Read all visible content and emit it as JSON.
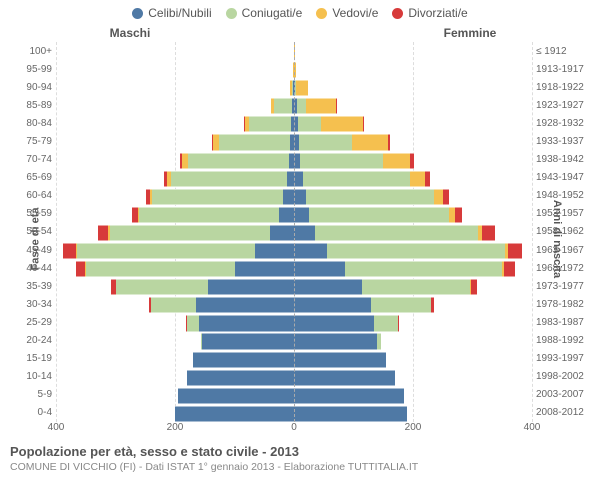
{
  "legend": [
    {
      "label": "Celibi/Nubili",
      "color": "#4f79a5"
    },
    {
      "label": "Coniugati/e",
      "color": "#b9d6a1"
    },
    {
      "label": "Vedovi/e",
      "color": "#f5c04f"
    },
    {
      "label": "Divorziati/e",
      "color": "#d73a3a"
    }
  ],
  "headers": {
    "left": "Maschi",
    "right": "Femmine"
  },
  "axis_titles": {
    "left": "Fasce di età",
    "right": "Anni di nascita"
  },
  "x_axis": {
    "max": 400,
    "ticks": [
      400,
      200,
      0,
      200,
      400
    ]
  },
  "colors": {
    "celibi": "#4f79a5",
    "coniugati": "#b9d6a1",
    "vedovi": "#f5c04f",
    "divorziati": "#d73a3a",
    "grid": "#dddddd",
    "centerline": "#aaaaaa",
    "text": "#555555",
    "bg": "#ffffff"
  },
  "fontsize": {
    "legend": 12,
    "header": 12,
    "labels": 10,
    "title": 13,
    "subtitle": 10.5
  },
  "rows": [
    {
      "age": "100+",
      "year": "≤ 1912",
      "m": [
        0,
        0,
        0,
        0
      ],
      "f": [
        0,
        0,
        1,
        0
      ]
    },
    {
      "age": "95-99",
      "year": "1913-1917",
      "m": [
        0,
        0,
        1,
        0
      ],
      "f": [
        0,
        0,
        4,
        0
      ]
    },
    {
      "age": "90-94",
      "year": "1918-1922",
      "m": [
        1,
        3,
        2,
        0
      ],
      "f": [
        2,
        2,
        20,
        0
      ]
    },
    {
      "age": "85-89",
      "year": "1923-1927",
      "m": [
        3,
        30,
        6,
        0
      ],
      "f": [
        5,
        15,
        50,
        1
      ]
    },
    {
      "age": "80-84",
      "year": "1928-1932",
      "m": [
        5,
        70,
        8,
        1
      ],
      "f": [
        6,
        40,
        70,
        2
      ]
    },
    {
      "age": "75-79",
      "year": "1933-1937",
      "m": [
        6,
        120,
        10,
        2
      ],
      "f": [
        8,
        90,
        60,
        4
      ]
    },
    {
      "age": "70-74",
      "year": "1938-1942",
      "m": [
        8,
        170,
        10,
        4
      ],
      "f": [
        10,
        140,
        45,
        6
      ]
    },
    {
      "age": "65-69",
      "year": "1943-1947",
      "m": [
        12,
        195,
        6,
        5
      ],
      "f": [
        15,
        180,
        25,
        8
      ]
    },
    {
      "age": "60-64",
      "year": "1948-1952",
      "m": [
        18,
        220,
        4,
        7
      ],
      "f": [
        20,
        215,
        15,
        10
      ]
    },
    {
      "age": "55-59",
      "year": "1953-1957",
      "m": [
        25,
        235,
        3,
        9
      ],
      "f": [
        25,
        235,
        10,
        12
      ]
    },
    {
      "age": "50-54",
      "year": "1958-1962",
      "m": [
        40,
        270,
        2,
        18
      ],
      "f": [
        35,
        275,
        6,
        22
      ]
    },
    {
      "age": "45-49",
      "year": "1963-1967",
      "m": [
        65,
        300,
        2,
        22
      ],
      "f": [
        55,
        300,
        4,
        25
      ]
    },
    {
      "age": "40-44",
      "year": "1968-1972",
      "m": [
        100,
        250,
        1,
        16
      ],
      "f": [
        85,
        265,
        3,
        18
      ]
    },
    {
      "age": "35-39",
      "year": "1973-1977",
      "m": [
        145,
        155,
        0,
        8
      ],
      "f": [
        115,
        180,
        2,
        10
      ]
    },
    {
      "age": "30-34",
      "year": "1978-1982",
      "m": [
        165,
        75,
        0,
        3
      ],
      "f": [
        130,
        100,
        1,
        5
      ]
    },
    {
      "age": "25-29",
      "year": "1983-1987",
      "m": [
        160,
        20,
        0,
        1
      ],
      "f": [
        135,
        40,
        0,
        2
      ]
    },
    {
      "age": "20-24",
      "year": "1988-1992",
      "m": [
        155,
        2,
        0,
        0
      ],
      "f": [
        140,
        6,
        0,
        0
      ]
    },
    {
      "age": "15-19",
      "year": "1993-1997",
      "m": [
        170,
        0,
        0,
        0
      ],
      "f": [
        155,
        0,
        0,
        0
      ]
    },
    {
      "age": "10-14",
      "year": "1998-2002",
      "m": [
        180,
        0,
        0,
        0
      ],
      "f": [
        170,
        0,
        0,
        0
      ]
    },
    {
      "age": "5-9",
      "year": "2003-2007",
      "m": [
        195,
        0,
        0,
        0
      ],
      "f": [
        185,
        0,
        0,
        0
      ]
    },
    {
      "age": "0-4",
      "year": "2008-2012",
      "m": [
        200,
        0,
        0,
        0
      ],
      "f": [
        190,
        0,
        0,
        0
      ]
    }
  ],
  "footer": {
    "title": "Popolazione per età, sesso e stato civile - 2013",
    "subtitle": "COMUNE DI VICCHIO (FI) - Dati ISTAT 1° gennaio 2013 - Elaborazione TUTTITALIA.IT"
  }
}
